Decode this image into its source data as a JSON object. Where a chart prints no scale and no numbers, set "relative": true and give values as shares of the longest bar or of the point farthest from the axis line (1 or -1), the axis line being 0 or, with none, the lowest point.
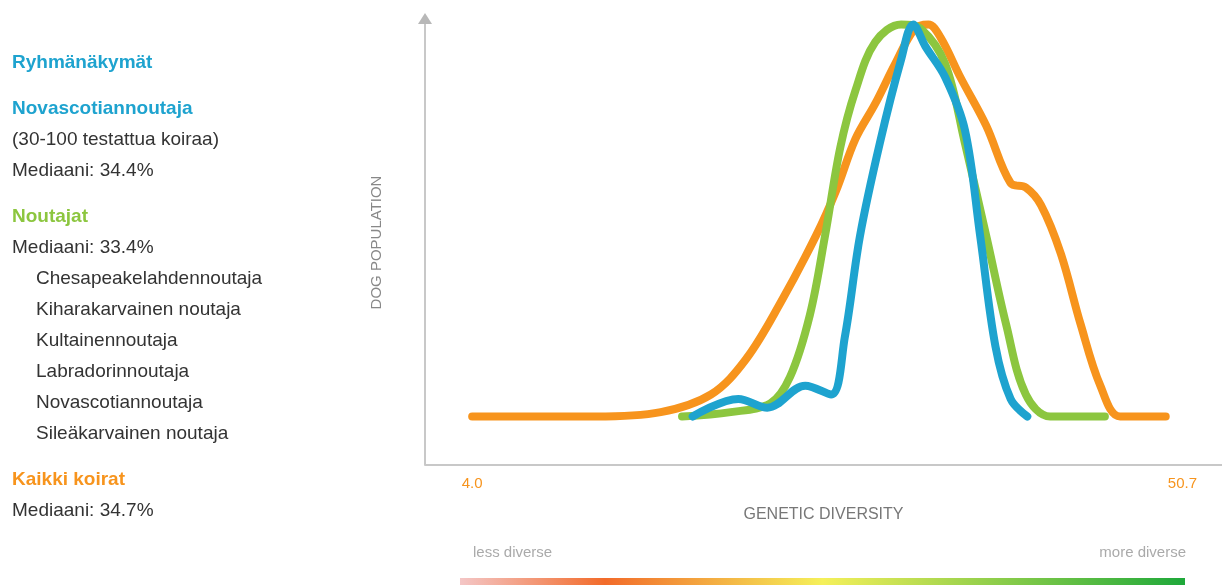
{
  "chart_data": {
    "type": "line",
    "relative": true,
    "legend_title": "Ryhmänäkymät",
    "legend": "left",
    "xlabel": "GENETIC DIVERSITY",
    "ylabel": "DOG POPULATION",
    "xlim": [
      0.9,
      53.3
    ],
    "xticks": [
      {
        "value": 4.0,
        "label": "4.0"
      },
      {
        "value": 50.7,
        "label": "50.7"
      }
    ],
    "grid": false,
    "line_style": "solid",
    "annotations": [
      "(30-100 testattua koiraa)",
      "Mediaani: 34.4%",
      "Mediaani: 33.4%",
      "Chesapeakelahdennoutaja",
      "Kiharakarvainen noutaja",
      "Kultainennoutaja",
      "Labradorinnoutaja",
      "Novascotiannoutaja",
      "Sileäkarvainen noutaja",
      "Mediaani: 34.7%",
      "less diverse",
      "more diverse"
    ],
    "series": [
      {
        "name": "Novascotiannoutaja",
        "color": "#1ea3cf",
        "x": [
          18.5,
          21.5,
          23.4,
          25.9,
          27.6,
          28.5,
          29.5,
          30.8,
          32.2,
          33.0,
          33.8,
          35.1,
          36.4,
          37.4,
          38.4,
          39.4,
          40.5
        ],
        "values": [
          0.11,
          0.15,
          0.13,
          0.18,
          0.16,
          0.29,
          0.52,
          0.73,
          0.92,
          1.0,
          0.95,
          0.88,
          0.76,
          0.52,
          0.27,
          0.15,
          0.11
        ]
      },
      {
        "name": "Noutajat",
        "color": "#8cc63f",
        "x": [
          17.8,
          21.0,
          23.6,
          24.9,
          26.2,
          27.2,
          28.2,
          29.2,
          30.5,
          32.2,
          33.5,
          35.1,
          36.4,
          37.8,
          39.1,
          40.4,
          42.0,
          45.6
        ],
        "values": [
          0.11,
          0.12,
          0.14,
          0.2,
          0.34,
          0.52,
          0.72,
          0.85,
          0.96,
          1.0,
          0.99,
          0.91,
          0.73,
          0.52,
          0.32,
          0.16,
          0.11,
          0.11
        ]
      },
      {
        "name": "Kaikki koirat",
        "color": "#f7941d",
        "x": [
          4.0,
          7.2,
          12.1,
          16.4,
          19.7,
          22.0,
          24.3,
          26.6,
          27.9,
          29.2,
          30.5,
          31.8,
          33.1,
          34.0,
          34.8,
          36.1,
          37.8,
          39.4,
          40.4,
          41.4,
          42.7,
          44.0,
          45.3,
          46.6,
          49.6
        ],
        "values": [
          0.11,
          0.11,
          0.11,
          0.12,
          0.16,
          0.24,
          0.37,
          0.52,
          0.62,
          0.74,
          0.82,
          0.91,
          0.99,
          1.0,
          0.97,
          0.88,
          0.77,
          0.64,
          0.63,
          0.59,
          0.48,
          0.32,
          0.18,
          0.11,
          0.11
        ]
      }
    ]
  }
}
